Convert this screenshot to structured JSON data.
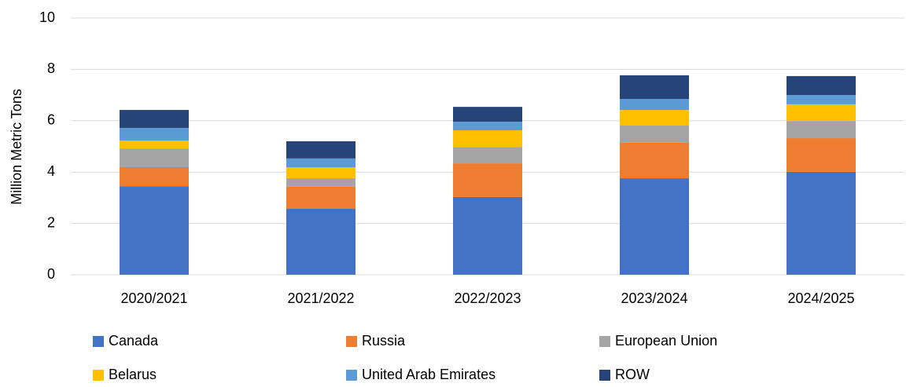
{
  "chart_data": {
    "type": "stacked_bar",
    "y_axis_label": "Million Metric Tons",
    "categories": [
      "2020/2021",
      "2021/2022",
      "2022/2023",
      "2023/2024",
      "2024/2025"
    ],
    "series": [
      {
        "name": "Canada",
        "color": "#4472c4",
        "values": [
          3.45,
          2.57,
          3.03,
          3.76,
          4.01
        ]
      },
      {
        "name": "Russia",
        "color": "#ed7d31",
        "values": [
          0.74,
          0.86,
          1.31,
          1.38,
          1.31
        ]
      },
      {
        "name": "European Union",
        "color": "#a5a5a5",
        "values": [
          0.73,
          0.33,
          0.64,
          0.67,
          0.67
        ]
      },
      {
        "name": "Belarus",
        "color": "#ffc000",
        "values": [
          0.31,
          0.43,
          0.65,
          0.61,
          0.65
        ]
      },
      {
        "name": "United Arab Emirates",
        "color": "#5b9bd5",
        "values": [
          0.49,
          0.34,
          0.33,
          0.43,
          0.36
        ]
      },
      {
        "name": "ROW",
        "color": "#264478",
        "values": [
          0.7,
          0.67,
          0.58,
          0.92,
          0.74
        ]
      }
    ],
    "ylim": [
      0,
      10
    ],
    "yticks": [
      0,
      2,
      4,
      6,
      8,
      10
    ],
    "grid": true
  }
}
